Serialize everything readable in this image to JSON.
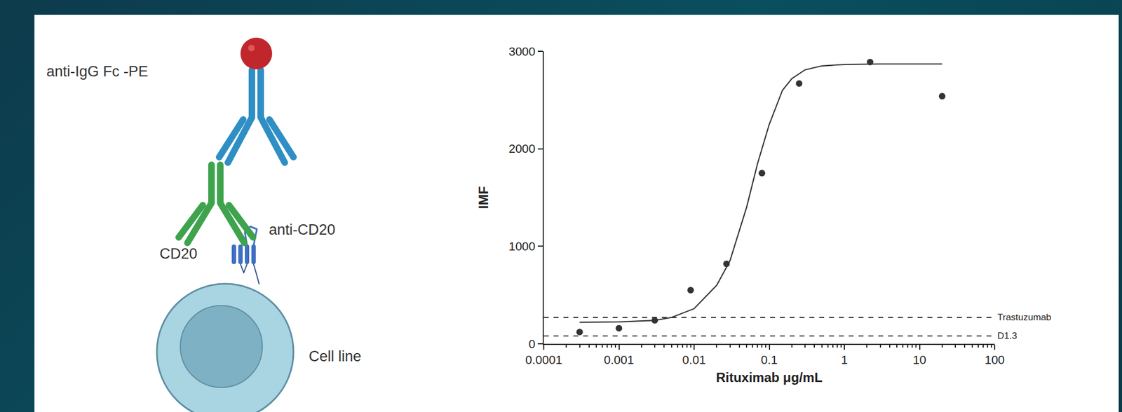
{
  "chart_data": {
    "type": "scatter",
    "x_label": "Rituximab μg/mL",
    "y_label": "IMF",
    "log": "x",
    "grid": false,
    "xlim": [
      0.0001,
      100
    ],
    "xticks": [
      0.0001,
      0.001,
      0.01,
      0.1,
      1,
      10,
      100
    ],
    "ylim": [
      0,
      3000
    ],
    "yticks": [
      0,
      1000,
      2000,
      3000
    ],
    "series": [
      {
        "type": "scatter",
        "marker": "circle",
        "color": "#333333",
        "x": [
          0.0003,
          0.001,
          0.003,
          0.009,
          0.027,
          0.08,
          0.25,
          2.2,
          20
        ],
        "values": [
          120,
          160,
          240,
          550,
          820,
          1750,
          2670,
          2890,
          2540
        ]
      },
      {
        "type": "line",
        "line_style": "solid",
        "color": "#333333",
        "x": [
          0.0003,
          0.001,
          0.003,
          0.005,
          0.01,
          0.02,
          0.03,
          0.05,
          0.07,
          0.1,
          0.15,
          0.2,
          0.3,
          0.5,
          1,
          3,
          20
        ],
        "values": [
          220,
          225,
          240,
          270,
          360,
          600,
          850,
          1400,
          1850,
          2250,
          2600,
          2720,
          2810,
          2850,
          2865,
          2870,
          2870
        ]
      },
      {
        "name": "Trastuzumab",
        "type": "line",
        "line_style": "dashed",
        "color": "#222222",
        "x": [
          0.0001,
          100
        ],
        "values": [
          270,
          270
        ]
      },
      {
        "name": "D1.3",
        "type": "line",
        "line_style": "dashed",
        "color": "#222222",
        "x": [
          0.0001,
          100
        ],
        "values": [
          80,
          80
        ]
      }
    ]
  },
  "diagram": {
    "labels": {
      "detector": "anti-IgG Fc -PE",
      "antibody": "anti-CD20",
      "antigen": "CD20",
      "cell": "Cell line"
    }
  }
}
